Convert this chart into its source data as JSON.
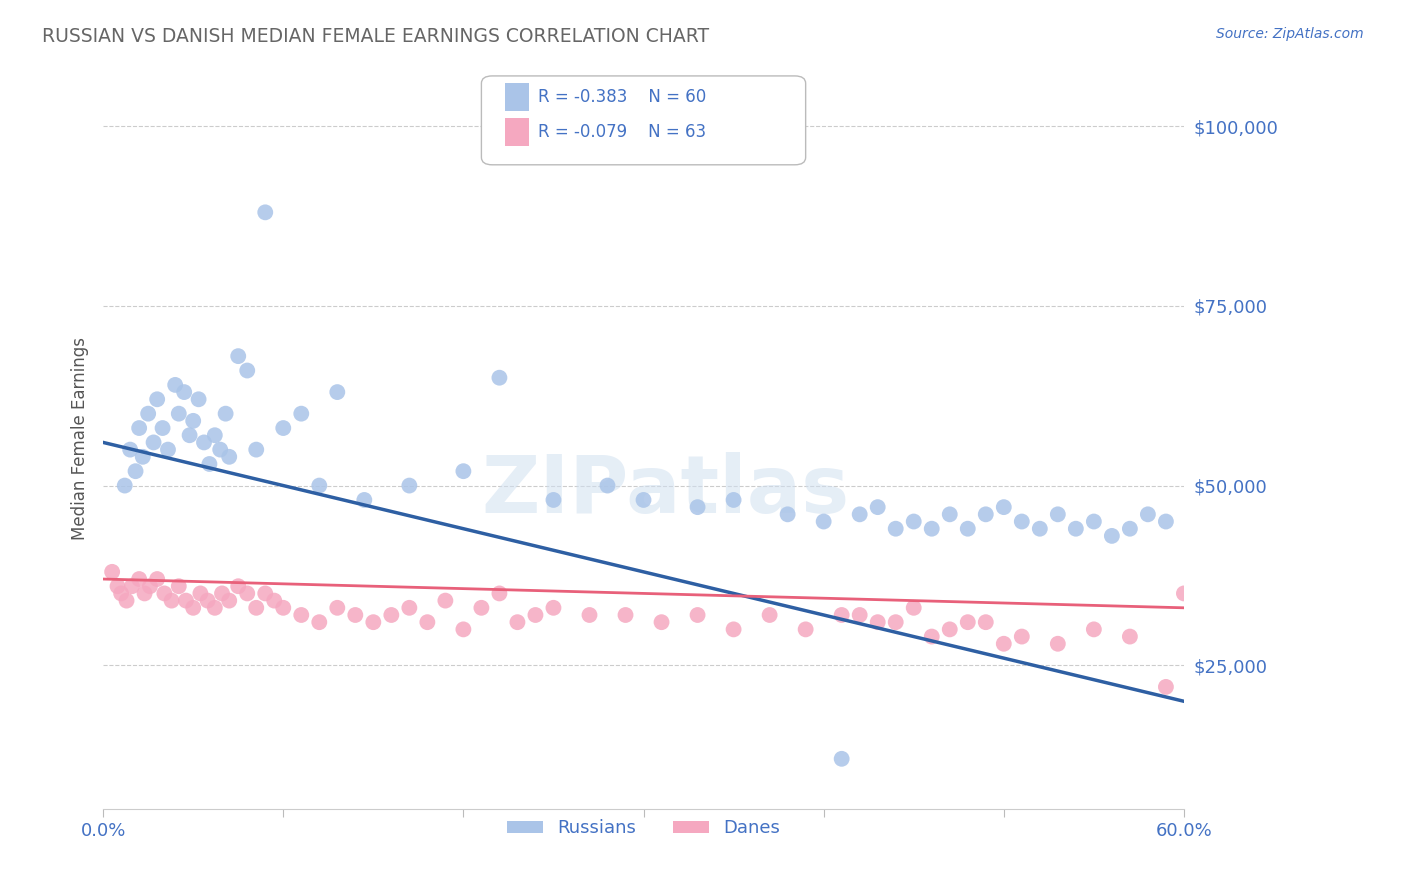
{
  "title": "RUSSIAN VS DANISH MEDIAN FEMALE EARNINGS CORRELATION CHART",
  "source_text": "Source: ZipAtlas.com",
  "ylabel": "Median Female Earnings",
  "xmin": 0.0,
  "xmax": 60.0,
  "ymin": 5000,
  "ymax": 108000,
  "yticks": [
    25000,
    50000,
    75000,
    100000
  ],
  "ytick_labels": [
    "$25,000",
    "$50,000",
    "$75,000",
    "$100,000"
  ],
  "grid_color": "#cccccc",
  "background_color": "#ffffff",
  "title_color": "#666666",
  "axis_color": "#4472c4",
  "russian_color": "#aac4e8",
  "danish_color": "#f5a8c0",
  "russian_line_color": "#2e5fa3",
  "danish_line_color": "#e8607a",
  "watermark": "ZIPatlas",
  "legend_label1": "Russians",
  "legend_label2": "Danes",
  "russian_line_x": [
    0.0,
    60.0
  ],
  "russian_line_y": [
    56000,
    20000
  ],
  "danish_line_x": [
    0.0,
    60.0
  ],
  "danish_line_y": [
    37000,
    33000
  ],
  "russian_x": [
    1.2,
    1.5,
    1.8,
    2.0,
    2.2,
    2.5,
    2.8,
    3.0,
    3.3,
    3.6,
    4.0,
    4.2,
    4.5,
    4.8,
    5.0,
    5.3,
    5.6,
    5.9,
    6.2,
    6.5,
    6.8,
    7.0,
    7.5,
    8.0,
    8.5,
    9.0,
    10.0,
    11.0,
    12.0,
    13.0,
    14.5,
    17.0,
    20.0,
    22.0,
    25.0,
    28.0,
    30.0,
    33.0,
    35.0,
    38.0,
    40.0,
    42.0,
    44.0,
    45.0,
    47.0,
    48.0,
    50.0,
    51.0,
    52.0,
    53.0,
    54.0,
    55.0,
    56.0,
    57.0,
    58.0,
    59.0,
    43.0,
    46.0,
    49.0,
    41.0
  ],
  "russian_y": [
    50000,
    55000,
    52000,
    58000,
    54000,
    60000,
    56000,
    62000,
    58000,
    55000,
    64000,
    60000,
    63000,
    57000,
    59000,
    62000,
    56000,
    53000,
    57000,
    55000,
    60000,
    54000,
    68000,
    66000,
    55000,
    88000,
    58000,
    60000,
    50000,
    63000,
    48000,
    50000,
    52000,
    65000,
    48000,
    50000,
    48000,
    47000,
    48000,
    46000,
    45000,
    46000,
    44000,
    45000,
    46000,
    44000,
    47000,
    45000,
    44000,
    46000,
    44000,
    45000,
    43000,
    44000,
    46000,
    45000,
    47000,
    44000,
    46000,
    12000
  ],
  "danish_x": [
    0.5,
    0.8,
    1.0,
    1.3,
    1.6,
    2.0,
    2.3,
    2.6,
    3.0,
    3.4,
    3.8,
    4.2,
    4.6,
    5.0,
    5.4,
    5.8,
    6.2,
    6.6,
    7.0,
    7.5,
    8.0,
    8.5,
    9.0,
    9.5,
    10.0,
    11.0,
    12.0,
    13.0,
    14.0,
    15.0,
    16.0,
    17.0,
    18.0,
    19.0,
    20.0,
    21.0,
    22.0,
    23.0,
    24.0,
    25.0,
    27.0,
    29.0,
    31.0,
    33.0,
    35.0,
    37.0,
    39.0,
    41.0,
    43.0,
    45.0,
    47.0,
    49.0,
    51.0,
    53.0,
    55.0,
    57.0,
    59.0,
    42.0,
    44.0,
    46.0,
    48.0,
    50.0,
    60.0
  ],
  "danish_y": [
    38000,
    36000,
    35000,
    34000,
    36000,
    37000,
    35000,
    36000,
    37000,
    35000,
    34000,
    36000,
    34000,
    33000,
    35000,
    34000,
    33000,
    35000,
    34000,
    36000,
    35000,
    33000,
    35000,
    34000,
    33000,
    32000,
    31000,
    33000,
    32000,
    31000,
    32000,
    33000,
    31000,
    34000,
    30000,
    33000,
    35000,
    31000,
    32000,
    33000,
    32000,
    32000,
    31000,
    32000,
    30000,
    32000,
    30000,
    32000,
    31000,
    33000,
    30000,
    31000,
    29000,
    28000,
    30000,
    29000,
    22000,
    32000,
    31000,
    29000,
    31000,
    28000,
    35000
  ]
}
